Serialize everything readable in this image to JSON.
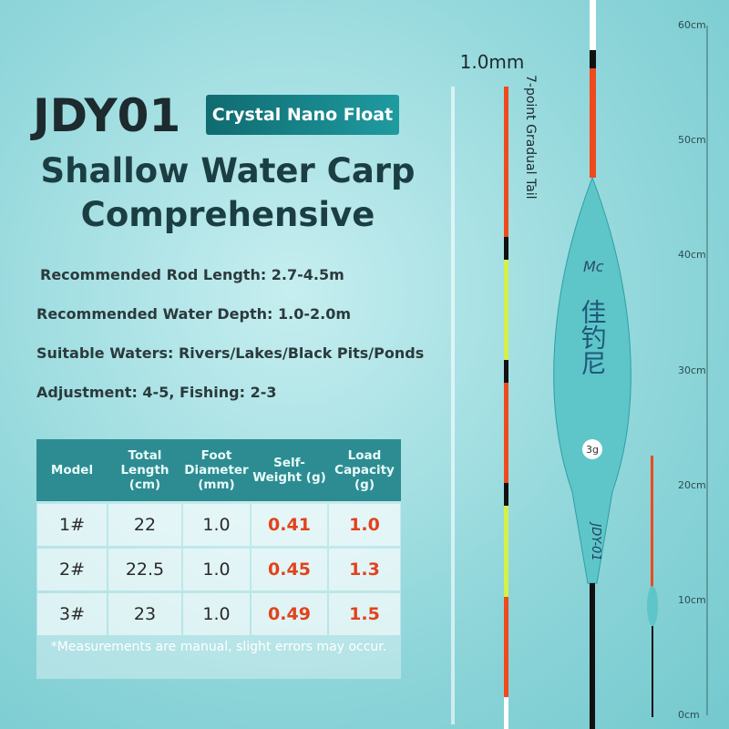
{
  "header": {
    "model": "JDY01",
    "badge": "Crystal Nano Float",
    "title_lines": [
      "Shallow Water Carp",
      "Comprehensive"
    ]
  },
  "specs": [
    "Recommended Rod Length: 2.7-4.5m",
    "Recommended Water Depth: 1.0-2.0m",
    "Suitable Waters: Rivers/Lakes/Black Pits/Ponds",
    "Adjustment: 4-5, Fishing: 2-3"
  ],
  "table": {
    "header": [
      "Model",
      "Total Length (cm)",
      "Foot Diameter (mm)",
      "Self-Weight (g)",
      "Load Capacity (g)"
    ],
    "rows": [
      [
        "1#",
        "22",
        "1.0",
        "0.41",
        "1.0"
      ],
      [
        "2#",
        "22.5",
        "1.0",
        "0.45",
        "1.3"
      ],
      [
        "3#",
        "23",
        "1.0",
        "0.49",
        "1.5"
      ]
    ],
    "note": "*Measurements are manual, slight errors may occur."
  },
  "float": {
    "tip_size": "1.0mm",
    "tail_note": "7-point Gradual Tail",
    "logo": "Mc",
    "brand": "佳钓尼",
    "code": "JDY-01",
    "badge": "3g"
  },
  "ruler": [
    "60cm",
    "50cm",
    "40cm",
    "30cm",
    "20cm",
    "10cm",
    "0cm"
  ]
}
